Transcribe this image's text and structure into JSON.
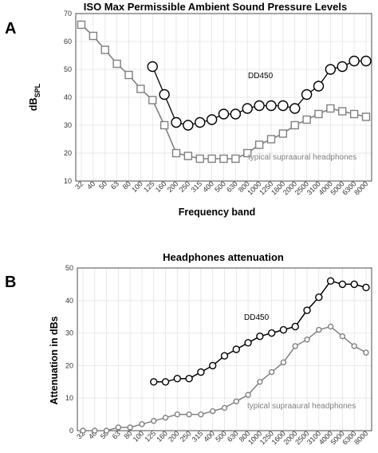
{
  "colors": {
    "dd450": "#000000",
    "supraaural": "#808080",
    "grid": "#e3e3e3",
    "axis": "#222222"
  },
  "chart_data": [
    {
      "panel_label": "A",
      "type": "line",
      "title": "ISO Max Permissible Ambient Sound Pressure Levels",
      "xlabel": "Frequency band",
      "ylabel_main": "dB",
      "ylabel_sub": "SPL",
      "ylim": [
        10,
        70
      ],
      "yticks": [
        10,
        20,
        30,
        40,
        50,
        60,
        70
      ],
      "grid": true,
      "categories": [
        "32",
        "40",
        "50",
        "63",
        "80",
        "100",
        "125",
        "160",
        "200",
        "250",
        "315",
        "400",
        "500",
        "630",
        "800",
        "1000",
        "1250",
        "1600",
        "2000",
        "2500",
        "3100",
        "4000",
        "5000",
        "6300",
        "8000"
      ],
      "series": [
        {
          "name": "DD450",
          "marker": "circle",
          "values": [
            null,
            null,
            null,
            null,
            null,
            null,
            51,
            41,
            31,
            30,
            31,
            32,
            34,
            34,
            36,
            37,
            37,
            37,
            36,
            41,
            44,
            50,
            51,
            53,
            53
          ]
        },
        {
          "name": "typical supraaural headphones",
          "marker": "square",
          "values": [
            66,
            62,
            57,
            52,
            48,
            43,
            39,
            30,
            20,
            19,
            18,
            18,
            18,
            18,
            20,
            23,
            25,
            27,
            30,
            32,
            34,
            36,
            35,
            34,
            33
          ]
        }
      ]
    },
    {
      "panel_label": "B",
      "type": "line",
      "title": "Headphones attenuation",
      "xlabel": "",
      "ylabel": "Attenuation in dBs",
      "ylim": [
        0,
        50
      ],
      "yticks": [
        0,
        10,
        20,
        30,
        40,
        50
      ],
      "grid": true,
      "categories": [
        "32",
        "40",
        "50",
        "63",
        "80",
        "100",
        "125",
        "160",
        "200",
        "250",
        "315",
        "400",
        "500",
        "630",
        "800",
        "1000",
        "1250",
        "1600",
        "2000",
        "2500",
        "3100",
        "4000",
        "5000",
        "6300",
        "8000"
      ],
      "series": [
        {
          "name": "DD450",
          "marker": "circle",
          "values": [
            null,
            null,
            null,
            null,
            null,
            null,
            15,
            15,
            16,
            16,
            18,
            20,
            23,
            25,
            27,
            29,
            30,
            31,
            32,
            37,
            41,
            46,
            45,
            45,
            44
          ]
        },
        {
          "name": "typical supraaural headphones",
          "marker": "circle",
          "values": [
            0,
            0,
            0,
            1,
            1,
            2,
            3,
            4,
            5,
            5,
            5,
            6,
            7,
            9,
            11,
            15,
            18,
            21,
            26,
            28,
            31,
            32,
            29,
            26,
            24
          ]
        }
      ]
    }
  ]
}
